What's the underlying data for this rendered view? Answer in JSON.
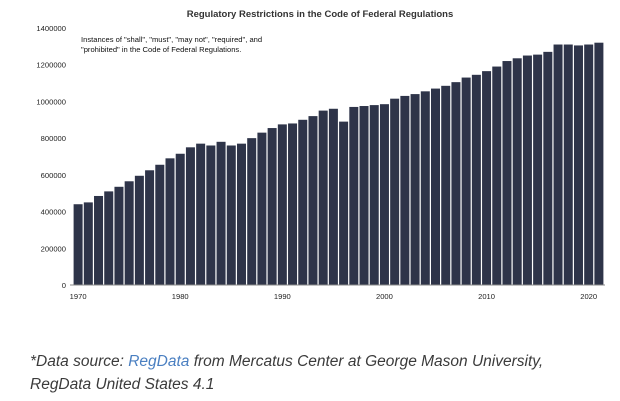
{
  "chart_data": {
    "type": "bar",
    "title": "Regulatory Restrictions in the Code of Federal Regulations",
    "annotation": [
      "Instances of \"shall\", \"must\", \"may not\", \"required\", and",
      "\"prohibited\" in the Code of Federal Regulations."
    ],
    "x": [
      1970,
      1971,
      1972,
      1973,
      1974,
      1975,
      1976,
      1977,
      1978,
      1979,
      1980,
      1981,
      1982,
      1983,
      1984,
      1985,
      1986,
      1987,
      1988,
      1989,
      1990,
      1991,
      1992,
      1993,
      1994,
      1995,
      1996,
      1997,
      1998,
      1999,
      2000,
      2001,
      2002,
      2003,
      2004,
      2005,
      2006,
      2007,
      2008,
      2009,
      2010,
      2011,
      2012,
      2013,
      2014,
      2015,
      2016,
      2017,
      2018,
      2019,
      2020,
      2021
    ],
    "values": [
      440000,
      450000,
      485000,
      510000,
      535000,
      565000,
      595000,
      625000,
      655000,
      690000,
      715000,
      750000,
      770000,
      760000,
      780000,
      760000,
      770000,
      800000,
      830000,
      855000,
      875000,
      880000,
      900000,
      920000,
      950000,
      960000,
      890000,
      970000,
      975000,
      980000,
      985000,
      1015000,
      1030000,
      1040000,
      1055000,
      1070000,
      1085000,
      1105000,
      1130000,
      1145000,
      1165000,
      1190000,
      1220000,
      1235000,
      1250000,
      1255000,
      1270000,
      1310000,
      1310000,
      1305000,
      1310000,
      1320000
    ],
    "xticks": [
      "1970",
      "1980",
      "1990",
      "2000",
      "2010",
      "2020"
    ],
    "yticks": [
      "0",
      "200000",
      "400000",
      "600000",
      "800000",
      "1000000",
      "1200000",
      "1400000"
    ],
    "ylim": [
      0,
      1400000
    ],
    "xlabel": "",
    "ylabel": "",
    "grid": false,
    "bar_color": "#2e3449"
  },
  "source": {
    "prefix": "*Data source: ",
    "link": "RegData",
    "middle": " from Mercatus Center at George Mason University,",
    "line2": "RegData United States 4.1"
  }
}
